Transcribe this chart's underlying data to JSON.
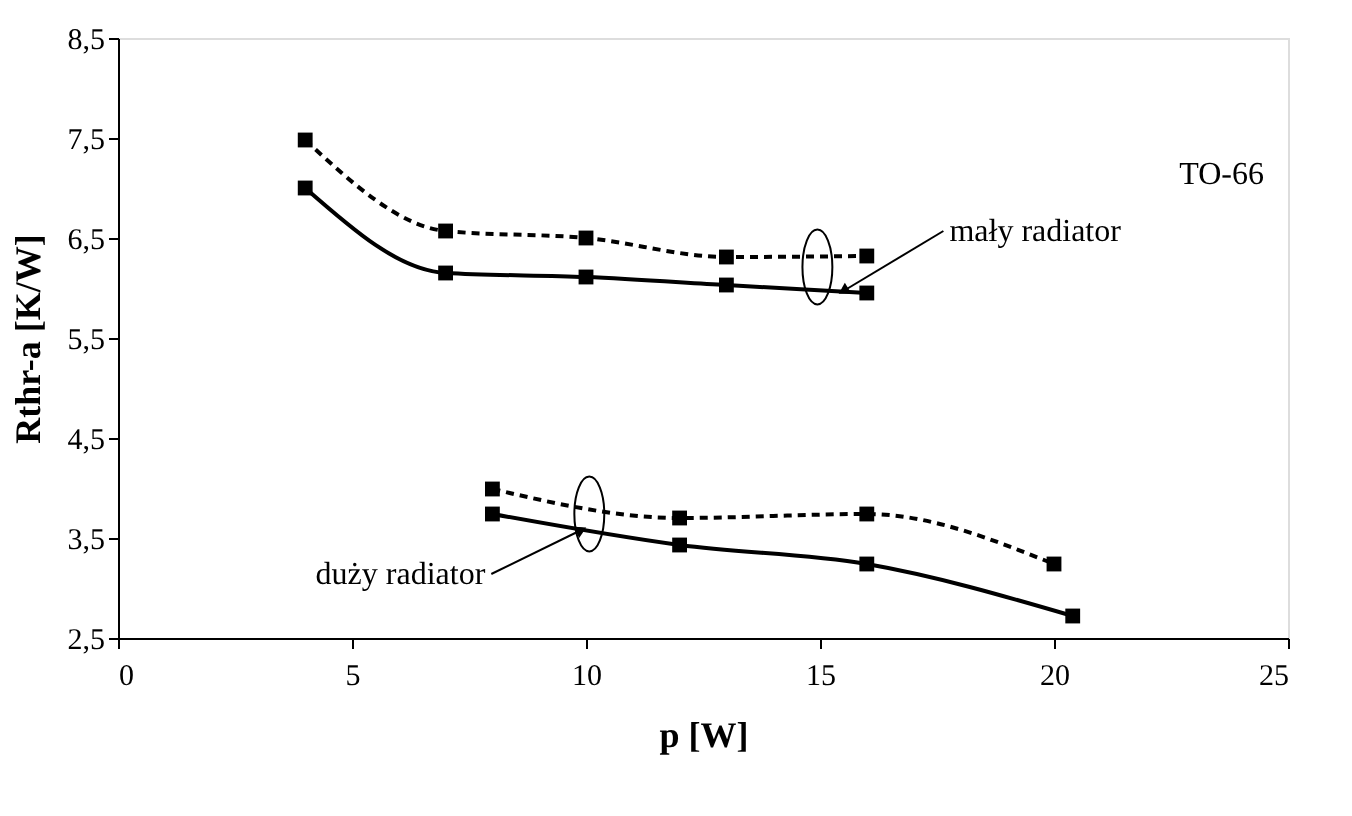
{
  "chart_data": {
    "type": "line",
    "xlabel": "p [W]",
    "ylabel": "Rthr-a [K/W]",
    "xlim": [
      0,
      25
    ],
    "xticks": [
      0,
      5,
      10,
      15,
      20,
      25
    ],
    "ylim": [
      2.5,
      8.5
    ],
    "yticks": [
      {
        "value": 2.5,
        "label": "2,5"
      },
      {
        "value": 3.5,
        "label": "3,5"
      },
      {
        "value": 4.5,
        "label": "4,5"
      },
      {
        "value": 5.5,
        "label": "5,5"
      },
      {
        "value": 6.5,
        "label": "6,5"
      },
      {
        "value": 7.5,
        "label": "7,5"
      },
      {
        "value": 8.5,
        "label": "8,5"
      }
    ],
    "grid": false,
    "marker": "square",
    "series": [
      {
        "color": "#000000",
        "line_style": "dashed",
        "x": [
          4,
          7,
          10,
          13,
          16
        ],
        "values": [
          7.48,
          6.57,
          6.5,
          6.31,
          6.32
        ]
      },
      {
        "color": "#000000",
        "line_style": "solid",
        "x": [
          4,
          7,
          10,
          13,
          16
        ],
        "values": [
          7.0,
          6.15,
          6.11,
          6.03,
          5.95
        ]
      },
      {
        "color": "#000000",
        "line_style": "dashed",
        "x": [
          8,
          12,
          16,
          20
        ],
        "values": [
          3.99,
          3.7,
          3.74,
          3.24
        ]
      },
      {
        "color": "#000000",
        "line_style": "solid",
        "x": [
          8,
          12,
          16,
          20.4
        ],
        "values": [
          3.74,
          3.43,
          3.24,
          2.72
        ]
      }
    ],
    "annotations": [
      "TO-66",
      {
        "text": "mały radiator",
        "x": 15.5,
        "y": 5.97
      },
      {
        "text": "duży radiator",
        "x": 9.9,
        "y": 3.58
      }
    ]
  }
}
